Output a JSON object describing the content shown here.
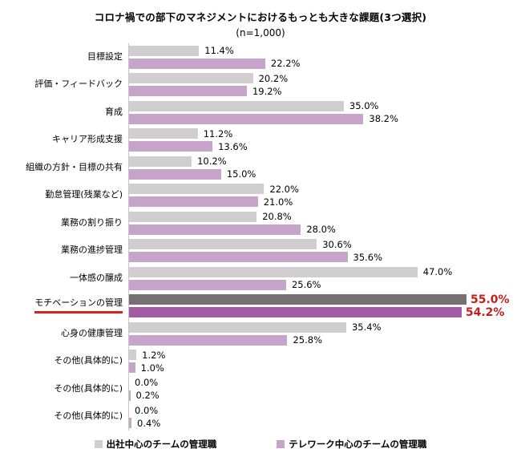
{
  "title": "コロナ禍での部下のマネジメントにおけるもっとも大きな課題(3つ選択)",
  "subtitle": "(n=1,000)",
  "colors": {
    "series1": "#d0cece",
    "series2": "#c7a4c9",
    "series1_highlight": "#757071",
    "series2_highlight": "#a15ca4",
    "highlight_text": "#c41f1a",
    "highlight_underline": "#d6241a",
    "axis_line": "#c8c6c6"
  },
  "legend": [
    {
      "label": "出社中心のチームの管理職",
      "color": "#d0cece"
    },
    {
      "label": "テレワーク中心のチームの管理職",
      "color": "#c7a4c9"
    }
  ],
  "chart_data": {
    "type": "bar",
    "orientation": "horizontal",
    "title": "コロナ禍での部下のマネジメントにおけるもっとも大きな課題(3つ選択)",
    "subtitle": "(n=1,000)",
    "categories": [
      "目標設定",
      "評価・フィードバック",
      "育成",
      "キャリア形成支援",
      "組織の方針・目標の共有",
      "勤怠管理(残業など)",
      "業務の割り振り",
      "業務の進捗管理",
      "一体感の醸成",
      "モチベーションの管理",
      "心身の健康管理",
      "その他(具体的に)",
      "その他(具体的に)",
      "その他(具体的に)"
    ],
    "series": [
      {
        "name": "出社中心のチームの管理職",
        "values": [
          11.4,
          20.2,
          35.0,
          11.2,
          10.2,
          22.0,
          20.8,
          30.6,
          47.0,
          55.0,
          35.4,
          1.2,
          0.0,
          0.0
        ]
      },
      {
        "name": "テレワーク中心のチームの管理職",
        "values": [
          22.2,
          19.2,
          38.2,
          13.6,
          15.0,
          21.0,
          28.0,
          35.6,
          25.6,
          54.2,
          25.8,
          1.0,
          0.2,
          0.4
        ]
      }
    ],
    "highlight_index": 9,
    "xlim": [
      0,
      55
    ],
    "value_suffix": "%",
    "value_decimals": 1,
    "grid": false,
    "legend_position": "bottom"
  }
}
